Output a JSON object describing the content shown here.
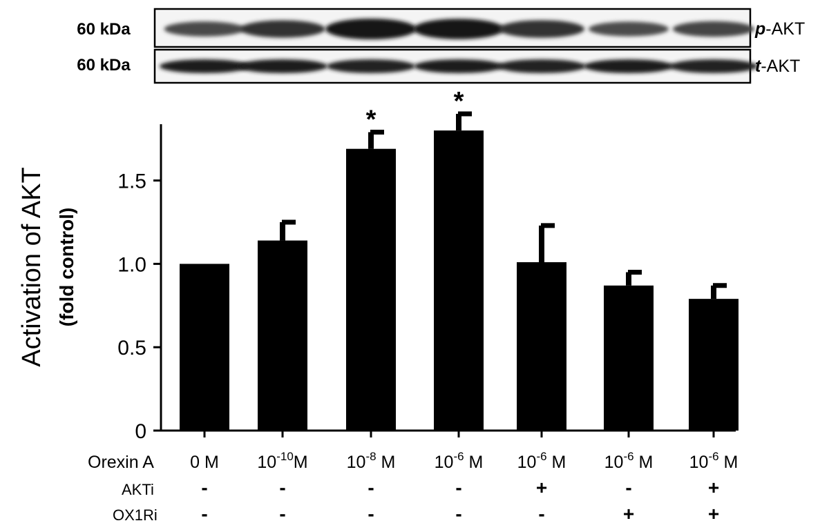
{
  "blots": [
    {
      "mw_label": "60 kDa",
      "protein_prefix": "p",
      "protein_suffix": "-AKT",
      "band_intensity": [
        0.62,
        0.78,
        1.0,
        0.98,
        0.8,
        0.6,
        0.66
      ]
    },
    {
      "mw_label": "60 kDa",
      "protein_prefix": "t",
      "protein_suffix": "-AKT",
      "band_intensity": [
        0.95,
        0.95,
        0.9,
        0.92,
        0.9,
        0.95,
        0.9
      ]
    }
  ],
  "chart_data": {
    "type": "bar",
    "ylabel": "Activation of AKT",
    "ylabel_sub": "(fold control)",
    "ylim": [
      0,
      1.8
    ],
    "yticks": [
      {
        "value": 0,
        "label": "0"
      },
      {
        "value": 0.5,
        "label": "0.5"
      },
      {
        "value": 1.0,
        "label": "1.0"
      },
      {
        "value": 1.5,
        "label": "1.5"
      }
    ],
    "categories": [
      "0 M",
      "10-10 M",
      "10-8 M",
      "10-6 M",
      "10-6 M",
      "10-6 M",
      "10-6 M"
    ],
    "values": [
      1.0,
      1.14,
      1.69,
      1.8,
      1.01,
      0.87,
      0.79
    ],
    "errors": [
      0,
      0.11,
      0.1,
      0.1,
      0.22,
      0.08,
      0.08
    ],
    "significant": [
      false,
      false,
      true,
      true,
      false,
      false,
      false
    ],
    "significance_marker": "*",
    "bar_color": "#000000",
    "conditions": [
      {
        "label": "Orexin A",
        "values": [
          {
            "base": "0 M"
          },
          {
            "base": "10",
            "exp": "-10",
            "unit": "M"
          },
          {
            "base": "10",
            "exp": "-8",
            "unit": " M"
          },
          {
            "base": "10",
            "exp": "-6",
            "unit": " M"
          },
          {
            "base": "10",
            "exp": "-6",
            "unit": " M"
          },
          {
            "base": "10",
            "exp": "-6",
            "unit": " M"
          },
          {
            "base": "10",
            "exp": "-6",
            "unit": " M"
          }
        ]
      },
      {
        "label": "AKTi",
        "values": [
          "-",
          "-",
          "-",
          "-",
          "+",
          "-",
          "+"
        ]
      },
      {
        "label": "OX1Ri",
        "values": [
          "-",
          "-",
          "-",
          "-",
          "-",
          "+",
          "+"
        ]
      }
    ]
  }
}
